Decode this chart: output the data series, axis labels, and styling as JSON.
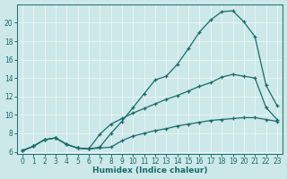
{
  "xlabel": "Humidex (Indice chaleur)",
  "xlim": [
    -0.5,
    23.5
  ],
  "ylim": [
    5.8,
    22.0
  ],
  "xticks": [
    0,
    1,
    2,
    3,
    4,
    5,
    6,
    7,
    8,
    9,
    10,
    11,
    12,
    13,
    14,
    15,
    16,
    17,
    18,
    19,
    20,
    21,
    22,
    23
  ],
  "yticks": [
    6,
    8,
    10,
    12,
    14,
    16,
    18,
    20
  ],
  "bg_color": "#cce8e8",
  "grid_color": "#e8f5f5",
  "line_color": "#1a6b6b",
  "line_peak_x": [
    0,
    1,
    2,
    3,
    4,
    5,
    6,
    7,
    8,
    9,
    10,
    11,
    12,
    13,
    14,
    15,
    16,
    17,
    18,
    19,
    20,
    21,
    22,
    23
  ],
  "line_peak_y": [
    6.1,
    6.6,
    7.3,
    7.5,
    6.8,
    6.4,
    6.3,
    6.5,
    8.0,
    9.3,
    10.8,
    12.3,
    13.8,
    14.2,
    15.5,
    17.2,
    19.0,
    20.3,
    21.2,
    21.3,
    20.1,
    18.5,
    13.2,
    11.0
  ],
  "line_mid_x": [
    0,
    1,
    2,
    3,
    4,
    5,
    6,
    7,
    8,
    9,
    10,
    11,
    12,
    13,
    14,
    15,
    16,
    17,
    18,
    19,
    20,
    21,
    22,
    23
  ],
  "line_mid_y": [
    6.1,
    6.6,
    7.3,
    7.5,
    6.8,
    6.4,
    6.3,
    7.9,
    9.0,
    9.6,
    10.2,
    10.7,
    11.2,
    11.7,
    12.1,
    12.6,
    13.1,
    13.5,
    14.1,
    14.4,
    14.2,
    14.0,
    10.8,
    9.5
  ],
  "line_flat_x": [
    0,
    1,
    2,
    3,
    4,
    5,
    6,
    7,
    8,
    9,
    10,
    11,
    12,
    13,
    14,
    15,
    16,
    17,
    18,
    19,
    20,
    21,
    22,
    23
  ],
  "line_flat_y": [
    6.1,
    6.6,
    7.3,
    7.5,
    6.8,
    6.4,
    6.3,
    6.4,
    6.5,
    7.2,
    7.7,
    8.0,
    8.3,
    8.5,
    8.8,
    9.0,
    9.2,
    9.4,
    9.5,
    9.6,
    9.7,
    9.7,
    9.5,
    9.3
  ]
}
